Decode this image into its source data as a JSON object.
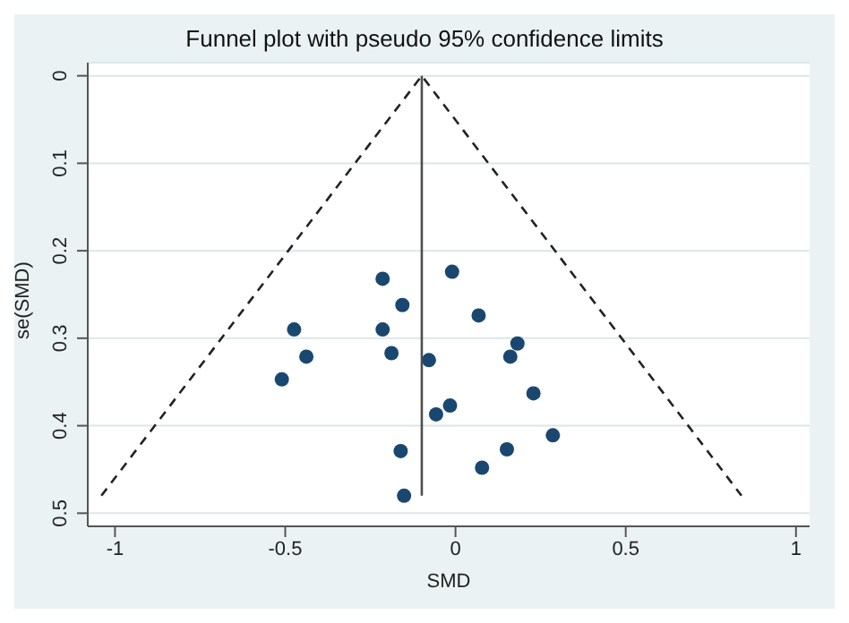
{
  "chart_data": {
    "type": "scatter",
    "title": "Funnel plot with pseudo 95% confidence limits",
    "xlabel": "SMD",
    "ylabel": "se(SMD)",
    "xlim": [
      -1.08,
      1.04
    ],
    "xticks": [
      -1,
      -0.5,
      0,
      0.5,
      1
    ],
    "ylim": [
      0.515,
      -0.015
    ],
    "yticks": [
      0,
      0.1,
      0.2,
      0.3,
      0.4,
      0.5
    ],
    "grid": "y",
    "legend": false,
    "series": [
      {
        "color": "#1a476f",
        "marker": "circle",
        "x": [
          -0.214,
          -0.01,
          -0.156,
          0.068,
          -0.474,
          -0.214,
          0.182,
          -0.438,
          -0.188,
          -0.078,
          0.161,
          -0.51,
          0.229,
          -0.016,
          -0.057,
          0.286,
          -0.161,
          0.151,
          0.078,
          -0.151
        ],
        "values": [
          0.232,
          0.224,
          0.262,
          0.274,
          0.29,
          0.29,
          0.306,
          0.321,
          0.317,
          0.325,
          0.321,
          0.347,
          0.363,
          0.377,
          0.387,
          0.411,
          0.429,
          0.427,
          0.448,
          0.48
        ]
      },
      {
        "type": "line",
        "color": "#4d4d4d",
        "marker": "none",
        "line_style": "solid",
        "x": [
          -0.099,
          -0.099
        ],
        "values": [
          0,
          0.48
        ]
      },
      {
        "type": "line",
        "color": "#222222",
        "marker": "none",
        "line_style": "dashed",
        "x": [
          -1.04,
          -0.099,
          0.84
        ],
        "values": [
          0.48,
          0,
          0.48
        ]
      }
    ]
  }
}
